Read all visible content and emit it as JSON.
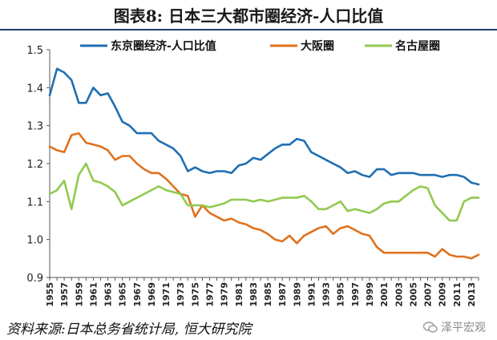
{
  "title": "图表8:  日本三大都市圈经济-人口比值",
  "source": "资料来源:日本总务省统计局, 恒大研究院",
  "watermark": "泽平宏观",
  "chart_data": {
    "type": "line",
    "title": "图表8:  日本三大都市圈经济-人口比值",
    "xlabel": "",
    "ylabel": "",
    "ylim": [
      0.9,
      1.5
    ],
    "yticks": [
      "0.9",
      "1.0",
      "1.1",
      "1.2",
      "1.3",
      "1.4",
      "1.5"
    ],
    "xticks": [
      "1955",
      "1957",
      "1959",
      "1961",
      "1963",
      "1965",
      "1967",
      "1969",
      "1971",
      "1973",
      "1975",
      "1977",
      "1979",
      "1981",
      "1983",
      "1985",
      "1987",
      "1989",
      "1991",
      "1993",
      "1995",
      "1997",
      "1999",
      "2001",
      "2003",
      "2005",
      "2007",
      "2009",
      "2011",
      "2013"
    ],
    "grid": false,
    "legend_position": "top",
    "x": [
      1955,
      1956,
      1957,
      1958,
      1959,
      1960,
      1961,
      1962,
      1963,
      1964,
      1965,
      1966,
      1967,
      1968,
      1969,
      1970,
      1971,
      1972,
      1973,
      1974,
      1975,
      1976,
      1977,
      1978,
      1979,
      1980,
      1981,
      1982,
      1983,
      1984,
      1985,
      1986,
      1987,
      1988,
      1989,
      1990,
      1991,
      1992,
      1993,
      1994,
      1995,
      1996,
      1997,
      1998,
      1999,
      2000,
      2001,
      2002,
      2003,
      2004,
      2005,
      2006,
      2007,
      2008,
      2009,
      2010,
      2011,
      2012,
      2013,
      2014
    ],
    "series": [
      {
        "name": "东京圈经济-人口比值",
        "color": "#1f6fb2",
        "values": [
          1.38,
          1.45,
          1.44,
          1.42,
          1.36,
          1.36,
          1.4,
          1.38,
          1.385,
          1.35,
          1.31,
          1.3,
          1.28,
          1.28,
          1.28,
          1.26,
          1.25,
          1.24,
          1.22,
          1.18,
          1.19,
          1.18,
          1.175,
          1.18,
          1.18,
          1.175,
          1.195,
          1.2,
          1.215,
          1.21,
          1.225,
          1.24,
          1.25,
          1.25,
          1.265,
          1.26,
          1.23,
          1.22,
          1.21,
          1.2,
          1.19,
          1.175,
          1.18,
          1.17,
          1.165,
          1.185,
          1.185,
          1.17,
          1.175,
          1.175,
          1.175,
          1.17,
          1.17,
          1.17,
          1.165,
          1.17,
          1.17,
          1.165,
          1.15,
          1.145
        ]
      },
      {
        "name": "大阪圈",
        "color": "#e0711c",
        "values": [
          1.245,
          1.235,
          1.23,
          1.275,
          1.28,
          1.255,
          1.25,
          1.245,
          1.235,
          1.21,
          1.22,
          1.22,
          1.2,
          1.185,
          1.175,
          1.175,
          1.16,
          1.14,
          1.12,
          1.115,
          1.06,
          1.09,
          1.07,
          1.06,
          1.05,
          1.055,
          1.045,
          1.04,
          1.03,
          1.025,
          1.015,
          1.0,
          0.995,
          1.01,
          0.99,
          1.01,
          1.02,
          1.03,
          1.035,
          1.015,
          1.03,
          1.035,
          1.025,
          1.015,
          1.01,
          0.98,
          0.965,
          0.965,
          0.965,
          0.965,
          0.965,
          0.965,
          0.965,
          0.955,
          0.975,
          0.96,
          0.955,
          0.955,
          0.95,
          0.96
        ]
      },
      {
        "name": "名古屋圈",
        "color": "#92c94f",
        "values": [
          1.12,
          1.13,
          1.155,
          1.08,
          1.17,
          1.2,
          1.155,
          1.15,
          1.14,
          1.125,
          1.09,
          1.1,
          1.11,
          1.12,
          1.13,
          1.14,
          1.13,
          1.125,
          1.12,
          1.09,
          1.09,
          1.09,
          1.085,
          1.09,
          1.095,
          1.105,
          1.105,
          1.105,
          1.1,
          1.105,
          1.1,
          1.105,
          1.11,
          1.11,
          1.11,
          1.115,
          1.1,
          1.08,
          1.08,
          1.09,
          1.1,
          1.075,
          1.08,
          1.075,
          1.07,
          1.08,
          1.095,
          1.1,
          1.1,
          1.115,
          1.13,
          1.14,
          1.135,
          1.09,
          1.07,
          1.05,
          1.05,
          1.1,
          1.11,
          1.11
        ]
      }
    ]
  }
}
